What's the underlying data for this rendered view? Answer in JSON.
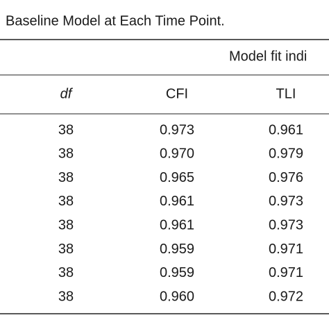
{
  "caption": "Baseline Model at Each Time Point.",
  "table": {
    "group_header": "Model fit indi",
    "columns": [
      "df",
      "CFI",
      "TLI"
    ],
    "rows": [
      [
        "38",
        "0.973",
        "0.961"
      ],
      [
        "38",
        "0.970",
        "0.979"
      ],
      [
        "38",
        "0.965",
        "0.976"
      ],
      [
        "38",
        "0.961",
        "0.973"
      ],
      [
        "38",
        "0.961",
        "0.973"
      ],
      [
        "38",
        "0.959",
        "0.971"
      ],
      [
        "38",
        "0.959",
        "0.971"
      ],
      [
        "38",
        "0.960",
        "0.972"
      ]
    ]
  }
}
